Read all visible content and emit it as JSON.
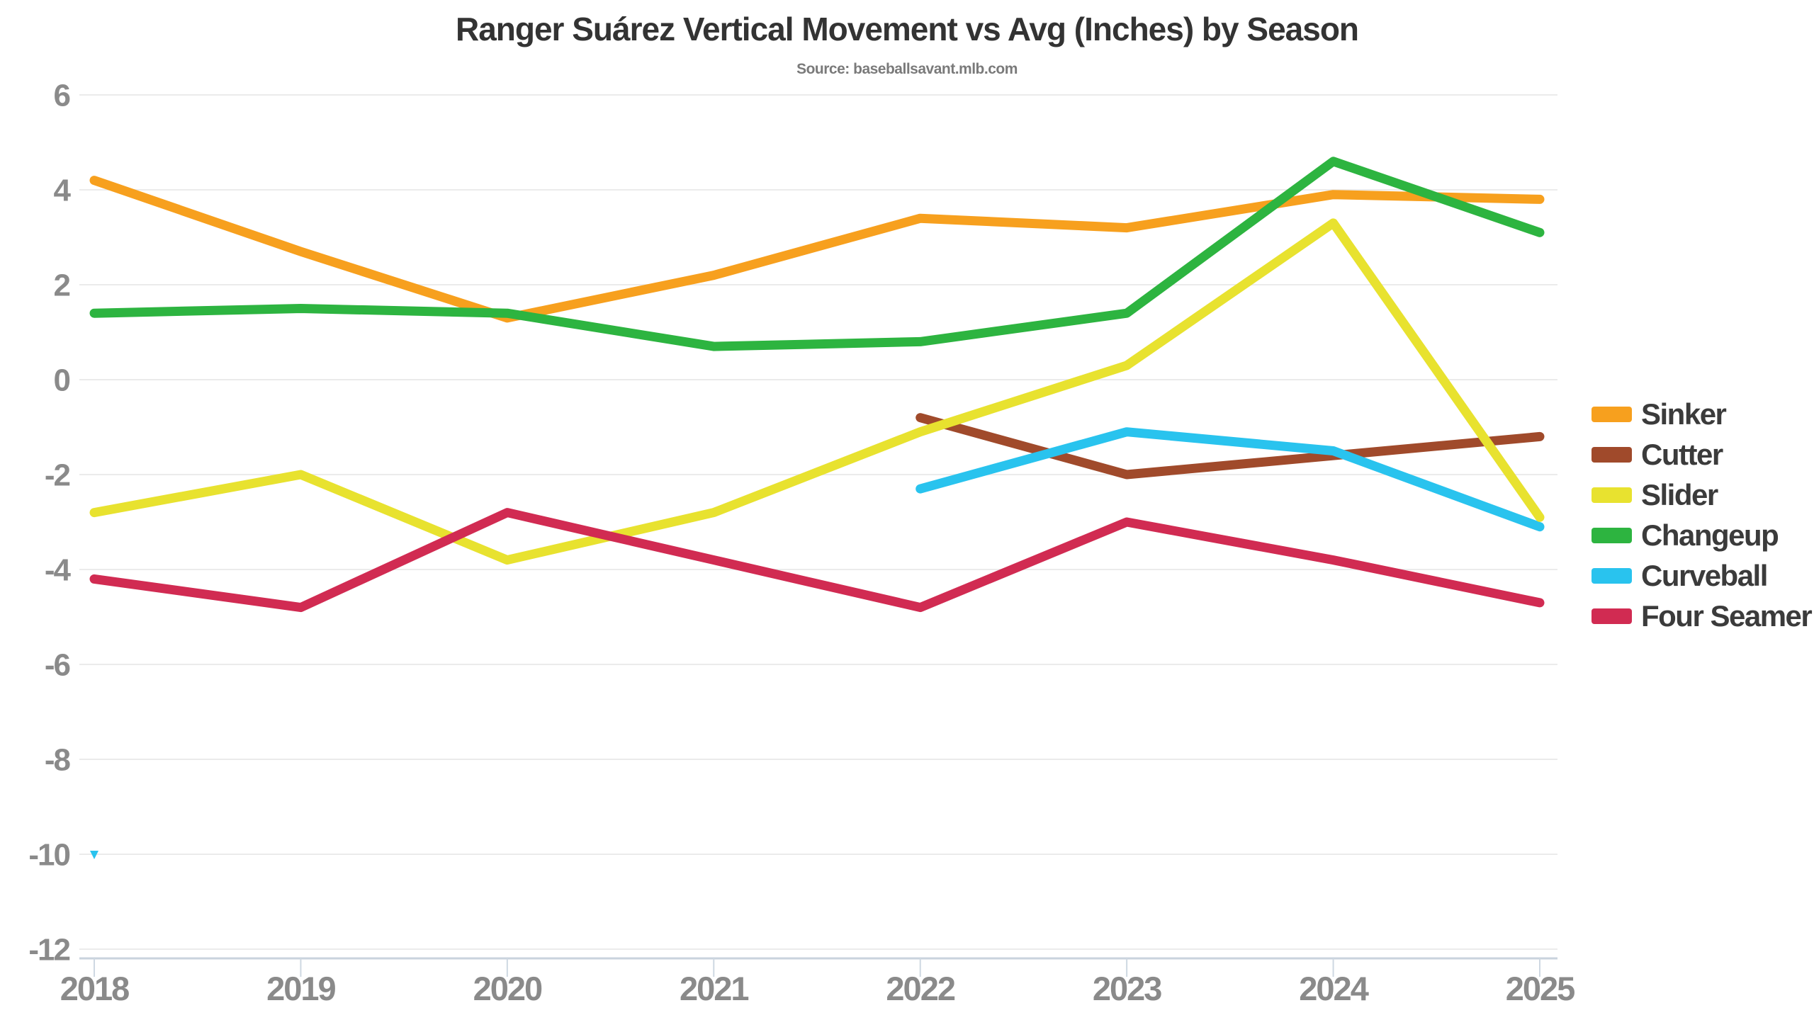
{
  "title": "Ranger Suárez Vertical Movement vs Avg (Inches) by Season",
  "source": "Source: baseballsavant.mlb.com",
  "colors": {
    "background": "#FFFFFF",
    "title_text": "#333333",
    "source_text": "#7A7A7A",
    "grid_line": "#EBEBEB",
    "axis_line": "#C9D3DD",
    "axis_tick": "#CED8E2",
    "tick_label": "#8A8A8A",
    "legend_text": "#3B3B3B"
  },
  "chart_data": {
    "type": "line",
    "title": "Ranger Suárez Vertical Movement vs Avg (Inches) by Season",
    "subtitle": "Source: baseballsavant.mlb.com",
    "xlabel": "",
    "ylabel": "",
    "x": [
      2018,
      2019,
      2020,
      2021,
      2022,
      2023,
      2024,
      2025
    ],
    "ylim": [
      -12,
      6
    ],
    "yticks": [
      6,
      4,
      2,
      0,
      -2,
      -4,
      -6,
      -8,
      -10,
      -12
    ],
    "grid": true,
    "legend_position": "right",
    "line_width": 13,
    "isolated_point_marker": "triangle-down",
    "series": [
      {
        "name": "Sinker",
        "color": "#F7A01E",
        "values": [
          4.2,
          2.7,
          1.3,
          2.2,
          3.4,
          3.2,
          3.9,
          3.8
        ]
      },
      {
        "name": "Cutter",
        "color": "#A04A2B",
        "values": [
          null,
          null,
          null,
          null,
          -0.8,
          -2.0,
          -1.6,
          -1.2
        ]
      },
      {
        "name": "Slider",
        "color": "#E8E22F",
        "values": [
          -2.8,
          -2.0,
          -3.8,
          -2.8,
          -1.1,
          0.3,
          3.3,
          -2.9
        ]
      },
      {
        "name": "Changeup",
        "color": "#2DB440",
        "values": [
          1.4,
          1.5,
          1.4,
          0.7,
          0.8,
          1.4,
          4.6,
          3.1
        ]
      },
      {
        "name": "Curveball",
        "color": "#29C3EE",
        "values": [
          -10.0,
          null,
          null,
          null,
          -2.3,
          -1.1,
          -1.5,
          -3.1
        ]
      },
      {
        "name": "Four Seamer",
        "color": "#D12B52",
        "values": [
          -4.2,
          -4.8,
          -2.8,
          -3.8,
          -4.8,
          -3.0,
          -3.8,
          -4.7
        ]
      }
    ],
    "draw_order": [
      "Sinker",
      "Cutter",
      "Curveball",
      "Slider",
      "Four Seamer",
      "Changeup"
    ]
  }
}
